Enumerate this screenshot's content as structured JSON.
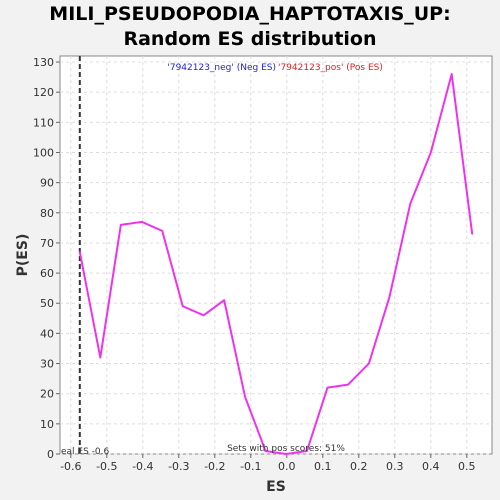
{
  "title_line1": "MILI_PSEUDOPODIA_HAPTOTAXIS_UP:",
  "title_line2": "Random ES distribution",
  "chart_data": {
    "type": "line",
    "xlabel": "ES",
    "ylabel": "P(ES)",
    "xlim": [
      -0.63,
      0.57
    ],
    "ylim": [
      0,
      132
    ],
    "x_ticks": [
      -0.6,
      -0.5,
      -0.4,
      -0.3,
      -0.2,
      -0.1,
      0.0,
      0.1,
      0.2,
      0.3,
      0.4,
      0.5
    ],
    "x_tick_labels": [
      "-0.6",
      "-0.5",
      "-0.4",
      "-0.3",
      "-0.2",
      "-0.1",
      "0.0",
      "0.1",
      "0.2",
      "0.3",
      "0.4",
      "0.5"
    ],
    "y_ticks": [
      0,
      10,
      20,
      30,
      40,
      50,
      60,
      70,
      80,
      90,
      100,
      110,
      120,
      130
    ],
    "y_tick_labels": [
      "0",
      "10",
      "20",
      "30",
      "40",
      "50",
      "60",
      "70",
      "80",
      "90",
      "100",
      "110",
      "120",
      "130"
    ],
    "grid": true,
    "series": [
      {
        "color": "#ee33ee",
        "x": [
          -0.575,
          -0.518,
          -0.461,
          -0.403,
          -0.346,
          -0.289,
          -0.231,
          -0.174,
          -0.116,
          -0.059,
          -0.002,
          0.056,
          0.113,
          0.17,
          0.228,
          0.285,
          0.343,
          0.4,
          0.458,
          0.515
        ],
        "y": [
          67,
          32,
          76,
          77,
          74,
          49,
          46,
          51,
          19,
          1,
          0,
          1,
          22,
          23,
          30,
          52,
          83,
          100,
          126,
          73
        ]
      }
    ],
    "vline": {
      "x": -0.575,
      "label": "eal ES -0.6",
      "color": "#333333"
    },
    "legend_neg": "'7942123_neg' (Neg ES)",
    "legend_pos": "'7942123_pos' (Pos ES)",
    "bottom_annotation": "Sets with pos scores: 51%"
  }
}
